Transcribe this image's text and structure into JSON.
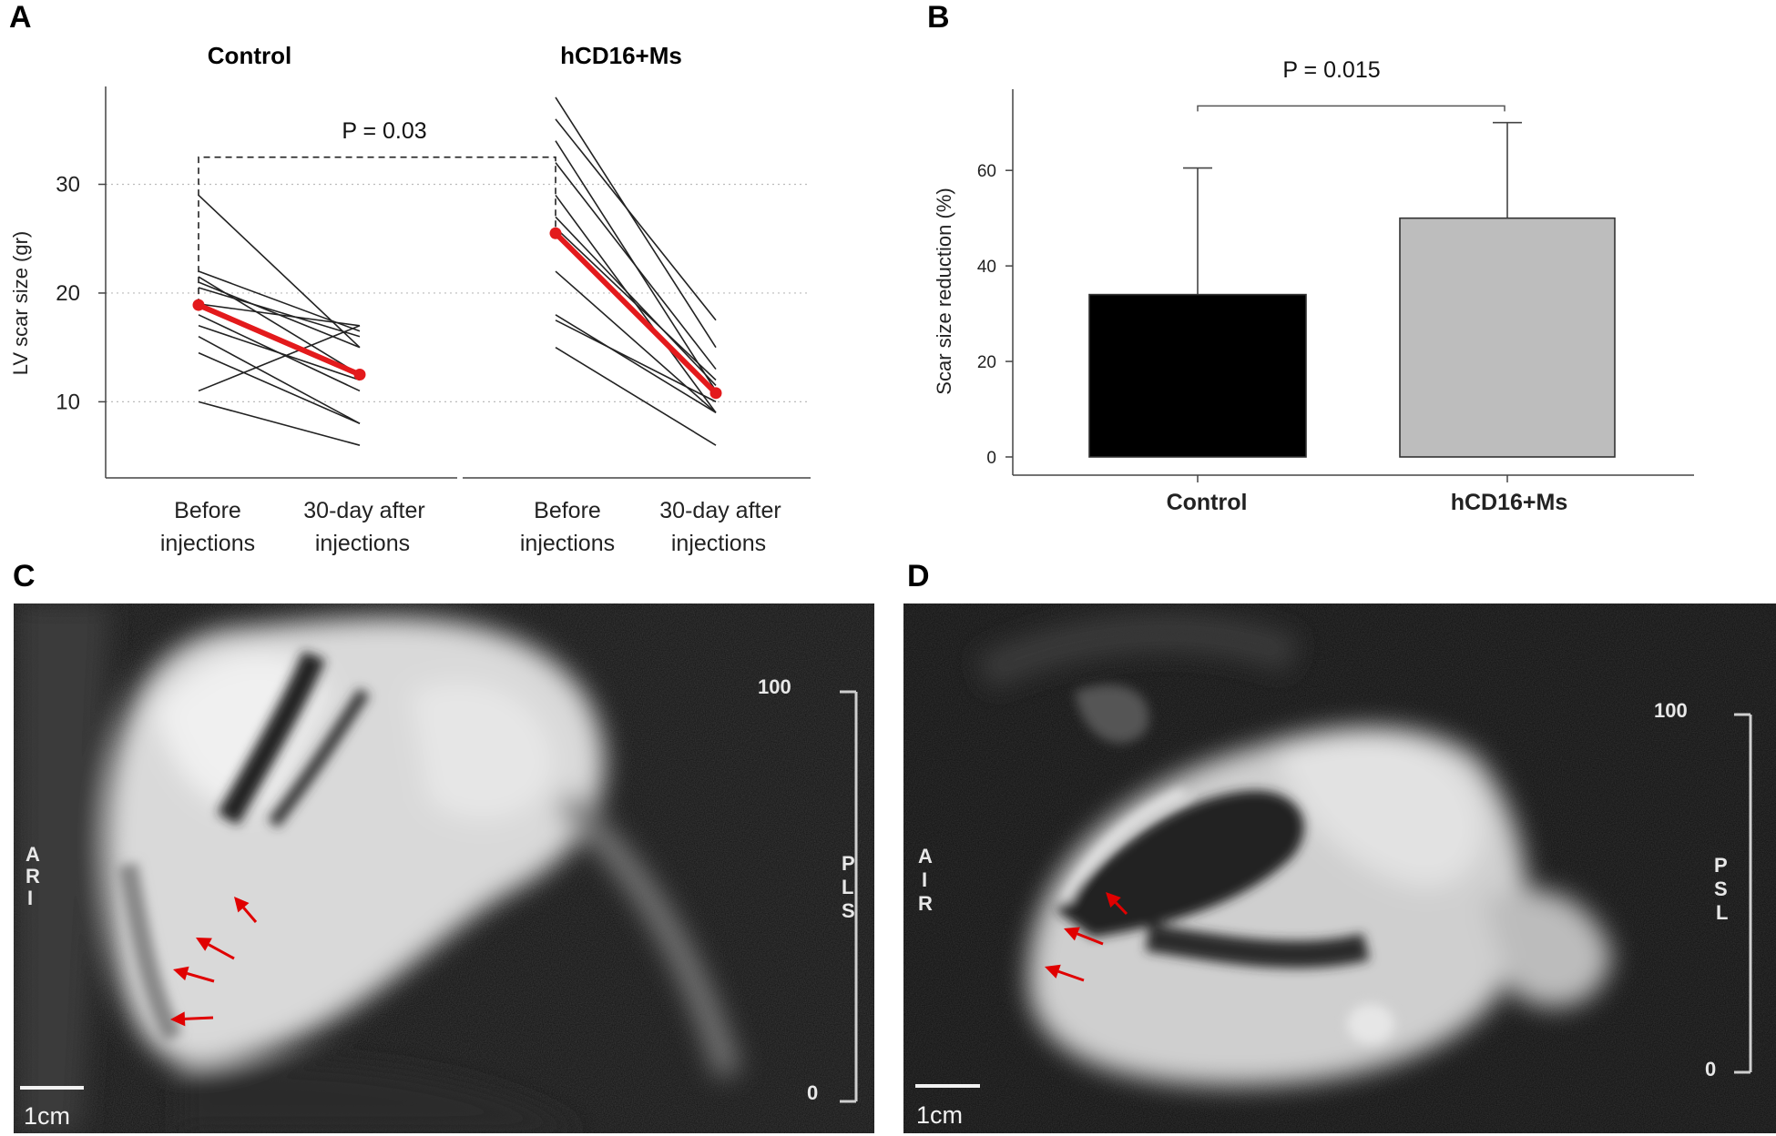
{
  "panels": {
    "A": "A",
    "B": "B",
    "C": "C",
    "D": "D"
  },
  "colors": {
    "mean_line": "#e31a1c",
    "subject_line": "#222222",
    "control_bar": "#000000",
    "treatment_bar": "#bdbdbd",
    "arrow": "#e00000"
  },
  "chart_data": [
    {
      "panel": "A",
      "type": "line",
      "groups": [
        "Control",
        "hCD16+Ms"
      ],
      "timepoints": [
        "Before injections",
        "30-day after injections"
      ],
      "tick_labels_line1": [
        "Before",
        "30-day after"
      ],
      "tick_labels_line2": [
        "injections",
        "injections"
      ],
      "ylabel": "LV scar size (gr)",
      "ylim": [
        3,
        39
      ],
      "yticks": [
        10,
        20,
        30
      ],
      "grid": "horizontal dotted",
      "pvalue": "P = 0.03",
      "pvalue_bracket_level": 32.5,
      "series": [
        {
          "group": "Control",
          "subjects": [
            [
              29,
              15
            ],
            [
              22,
              16.5
            ],
            [
              21.5,
              12.5
            ],
            [
              21,
              15
            ],
            [
              20.5,
              16
            ],
            [
              19,
              17
            ],
            [
              18,
              11
            ],
            [
              17,
              12
            ],
            [
              16,
              8
            ],
            [
              14.5,
              8
            ],
            [
              11,
              17
            ],
            [
              10,
              6
            ]
          ],
          "mean": [
            18.9,
            12.5
          ]
        },
        {
          "group": "hCD16+Ms",
          "subjects": [
            [
              38,
              15
            ],
            [
              36,
              17.5
            ],
            [
              34,
              11
            ],
            [
              32,
              13
            ],
            [
              29,
              9
            ],
            [
              27,
              11.5
            ],
            [
              26,
              12
            ],
            [
              22,
              9
            ],
            [
              18,
              9
            ],
            [
              17.5,
              10
            ],
            [
              15,
              6
            ]
          ],
          "mean": [
            25.5,
            10.8
          ]
        }
      ]
    },
    {
      "panel": "B",
      "type": "bar",
      "categories": [
        "Control",
        "hCD16+Ms"
      ],
      "values": [
        34,
        50
      ],
      "error_upper": [
        60.5,
        70
      ],
      "ylabel": "Scar size reduction (%)",
      "ylim": [
        0,
        77
      ],
      "yticks": [
        0,
        20,
        40,
        60
      ],
      "pvalue": "P = 0.015",
      "pvalue_bracket_level": 73.5
    }
  ],
  "mri": {
    "C": {
      "scale_top": "100",
      "scale_bottom": "0",
      "left_orientation": [
        "A",
        "R",
        "I"
      ],
      "right_orientation": [
        "P",
        "L",
        "S"
      ],
      "scale_bar_label": "1cm",
      "arrows": 4
    },
    "D": {
      "scale_top": "100",
      "scale_bottom": "0",
      "left_orientation": [
        "A",
        "I",
        "R"
      ],
      "right_orientation": [
        "P",
        "S",
        "L"
      ],
      "scale_bar_label": "1cm",
      "arrows": 3
    }
  }
}
